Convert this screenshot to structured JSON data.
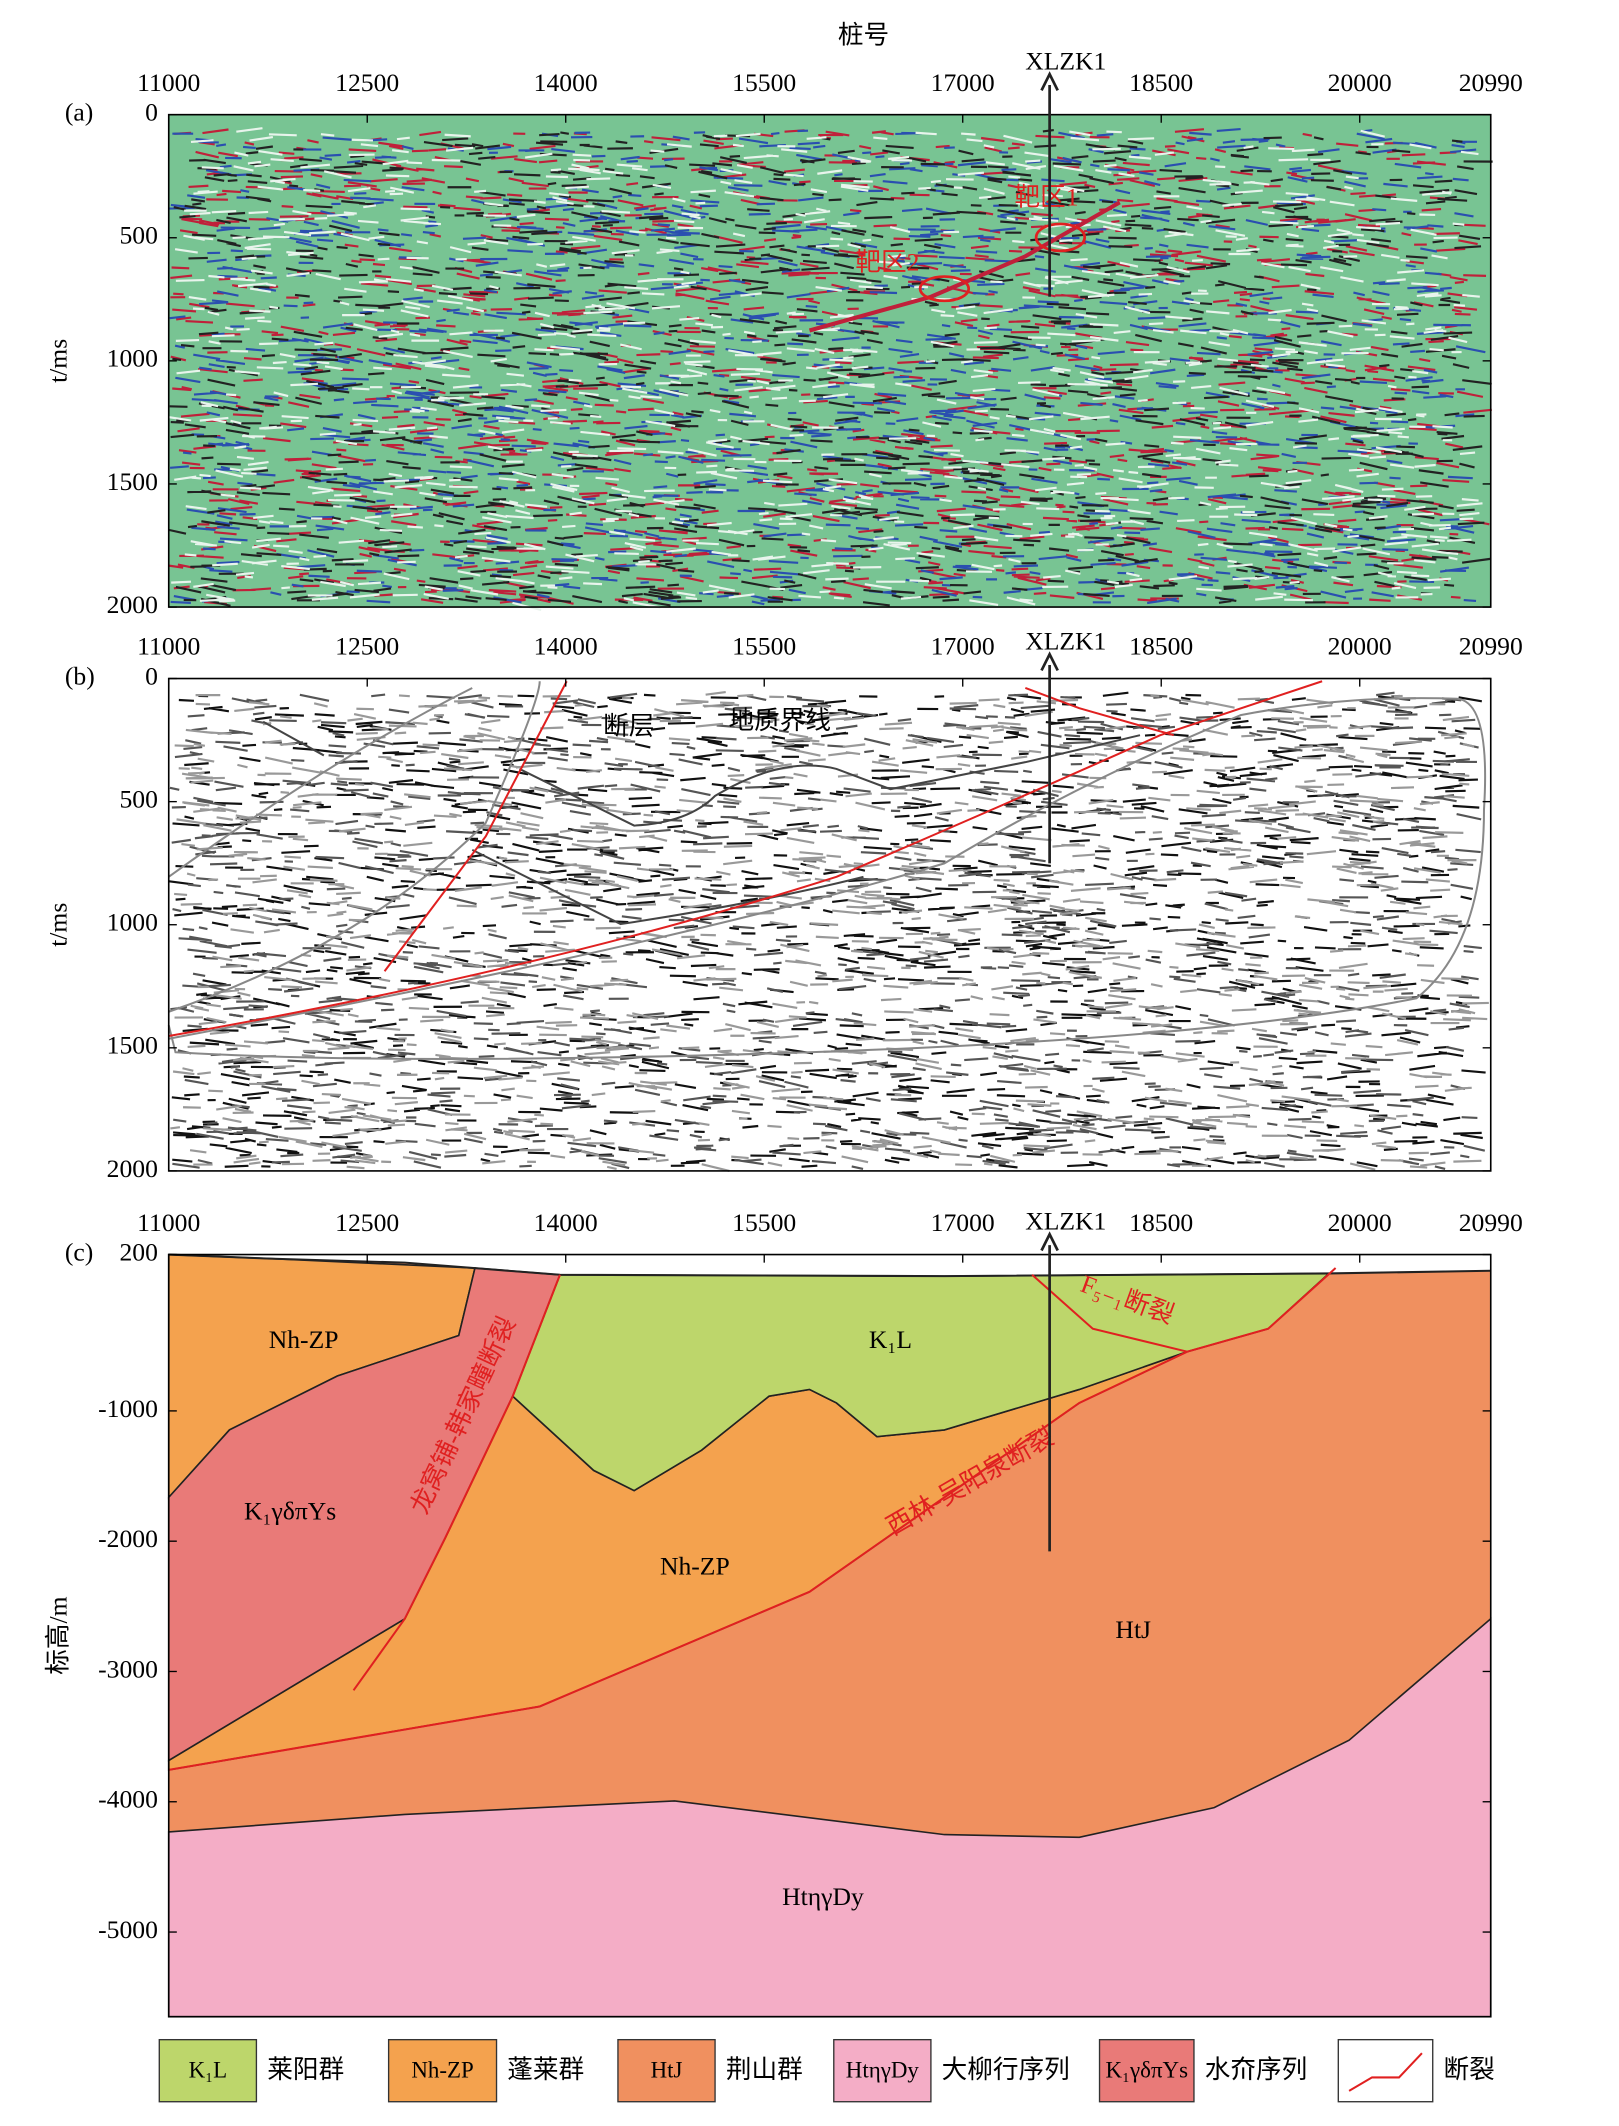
{
  "x_axis_title": "桩号",
  "panels": [
    {
      "label": "(a)",
      "xlim": [
        11000,
        20990
      ],
      "xticks": [
        11000,
        12500,
        14000,
        15500,
        17000,
        18500,
        20000,
        20990
      ],
      "ylim": [
        0,
        2000
      ],
      "yticks": [
        0,
        500,
        1000,
        1500,
        2000
      ],
      "y_inverted": true,
      "ylabel": "t/ms",
      "borehole": "XLZK1",
      "annotations": [
        "靶区1",
        "靶区2"
      ]
    },
    {
      "label": "(b)",
      "xlim": [
        11000,
        20990
      ],
      "xticks": [
        11000,
        12500,
        14000,
        15500,
        17000,
        18500,
        20000,
        20990
      ],
      "ylim": [
        0,
        2000
      ],
      "yticks": [
        0,
        500,
        1000,
        1500,
        2000
      ],
      "y_inverted": true,
      "ylabel": "t/ms",
      "borehole": "XLZK1",
      "annotations": [
        "断层",
        "地质界线"
      ]
    },
    {
      "label": "(c)",
      "xlim": [
        11000,
        20990
      ],
      "xticks": [
        11000,
        12500,
        14000,
        15500,
        17000,
        18500,
        20000,
        20990
      ],
      "ylim": [
        -5650,
        200
      ],
      "yticks": [
        200,
        -1000,
        -2000,
        -3000,
        -4000,
        -5000
      ],
      "y_inverted": false,
      "ylabel": "标高/m",
      "borehole": "XLZK1",
      "annotations": [
        "Nh-ZP",
        "K₁L",
        "K₁γδπYs",
        "Nh-ZP",
        "HtJ",
        "HtηγDy",
        "龙窝铺-韩家疃断裂",
        "西林-吴阳泉断裂",
        "F₅₋₁断裂"
      ]
    }
  ],
  "legend": [
    {
      "symbol": "K₁L",
      "label": "莱阳群",
      "color": "#bdd66b"
    },
    {
      "symbol": "Nh-ZP",
      "label": "蓬莱群",
      "color": "#f4a24e"
    },
    {
      "symbol": "HtJ",
      "label": "荆山群",
      "color": "#f0905f"
    },
    {
      "symbol": "HtηγDy",
      "label": "大柳行序列",
      "color": "#f4adc6"
    },
    {
      "symbol": "K₁γδπYs",
      "label": "水夼序列",
      "color": "#e97a78"
    },
    {
      "label": "断裂",
      "color": "#e02020"
    }
  ]
}
